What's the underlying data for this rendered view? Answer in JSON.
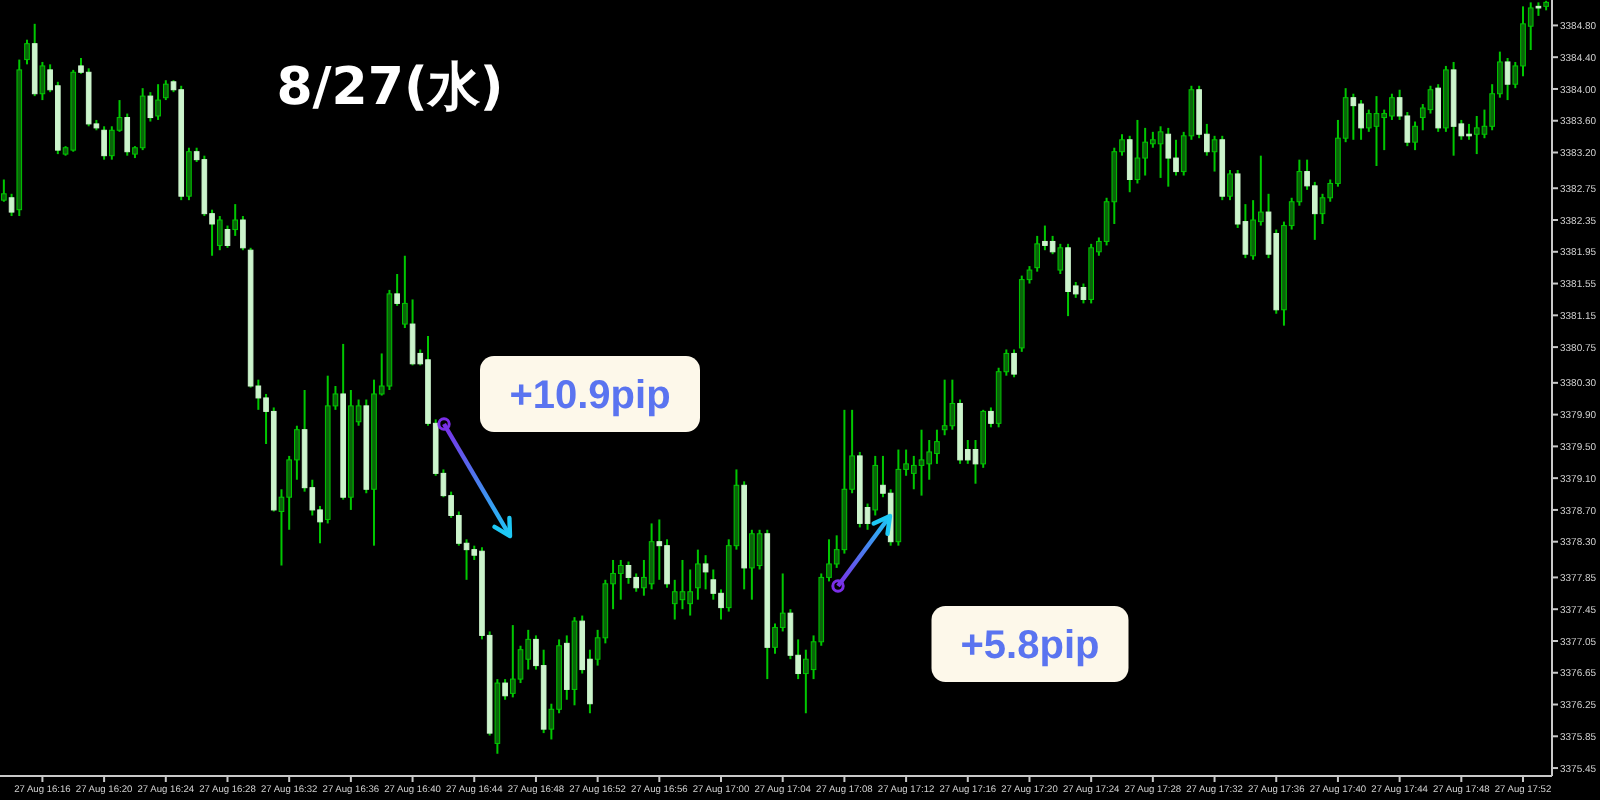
{
  "chart_data": {
    "type": "candlestick",
    "title": "8/27(水)",
    "ylim": [
      3375.35,
      3385.12
    ],
    "yticks": [
      {
        "value": 3384.8,
        "label": "3384.80"
      },
      {
        "value": 3384.4,
        "label": "3384.40"
      },
      {
        "value": 3384.0,
        "label": "3384.00"
      },
      {
        "value": 3383.6,
        "label": "3383.60"
      },
      {
        "value": 3383.2,
        "label": "3383.20"
      },
      {
        "value": 3382.75,
        "label": "3382.75"
      },
      {
        "value": 3382.35,
        "label": "3382.35"
      },
      {
        "value": 3381.95,
        "label": "3381.95"
      },
      {
        "value": 3381.55,
        "label": "3381.55"
      },
      {
        "value": 3381.15,
        "label": "3381.15"
      },
      {
        "value": 3380.75,
        "label": "3380.75"
      },
      {
        "value": 3380.3,
        "label": "3380.30"
      },
      {
        "value": 3379.9,
        "label": "3379.90"
      },
      {
        "value": 3379.5,
        "label": "3379.50"
      },
      {
        "value": 3379.1,
        "label": "3379.10"
      },
      {
        "value": 3378.7,
        "label": "3378.70"
      },
      {
        "value": 3378.3,
        "label": "3378.30"
      },
      {
        "value": 3377.85,
        "label": "3377.85"
      },
      {
        "value": 3377.45,
        "label": "3377.45"
      },
      {
        "value": 3377.05,
        "label": "3377.05"
      },
      {
        "value": 3376.65,
        "label": "3376.65"
      },
      {
        "value": 3376.25,
        "label": "3376.25"
      },
      {
        "value": 3375.85,
        "label": "3375.85"
      },
      {
        "value": 3375.45,
        "label": "3375.45"
      }
    ],
    "annotations": [
      "+10.9pip",
      "+5.8pip"
    ],
    "categories": [
      null,
      null,
      null,
      null,
      null,
      "27 Aug 16:16",
      null,
      null,
      null,
      null,
      null,
      null,
      null,
      "27 Aug 16:20",
      null,
      null,
      null,
      null,
      null,
      null,
      null,
      "27 Aug 16:24",
      null,
      null,
      null,
      null,
      null,
      null,
      null,
      "27 Aug 16:28",
      null,
      null,
      null,
      null,
      null,
      null,
      null,
      "27 Aug 16:32",
      null,
      null,
      null,
      null,
      null,
      null,
      null,
      "27 Aug 16:36",
      null,
      null,
      null,
      null,
      null,
      null,
      null,
      "27 Aug 16:40",
      null,
      null,
      null,
      null,
      null,
      null,
      null,
      "27 Aug 16:44",
      null,
      null,
      null,
      null,
      null,
      null,
      null,
      "27 Aug 16:48",
      null,
      null,
      null,
      null,
      null,
      null,
      null,
      "27 Aug 16:52",
      null,
      null,
      null,
      null,
      null,
      null,
      null,
      "27 Aug 16:56",
      null,
      null,
      null,
      null,
      null,
      null,
      null,
      "27 Aug 17:00",
      null,
      null,
      null,
      null,
      null,
      null,
      null,
      "27 Aug 17:04",
      null,
      null,
      null,
      null,
      null,
      null,
      null,
      "27 Aug 17:08",
      null,
      null,
      null,
      null,
      null,
      null,
      null,
      "27 Aug 17:12",
      null,
      null,
      null,
      null,
      null,
      null,
      null,
      "27 Aug 17:16",
      null,
      null,
      null,
      null,
      null,
      null,
      null,
      "27 Aug 17:20",
      null,
      null,
      null,
      null,
      null,
      null,
      null,
      "27 Aug 17:24",
      null,
      null,
      null,
      null,
      null,
      null,
      null,
      "27 Aug 17:28",
      null,
      null,
      null,
      null,
      null,
      null,
      null,
      "27 Aug 17:32",
      null,
      null,
      null,
      null,
      null,
      null,
      null,
      "27 Aug 17:36",
      null,
      null,
      null,
      null,
      null,
      null,
      null,
      "27 Aug 17:40",
      null,
      null,
      null,
      null,
      null,
      null,
      null,
      "27 Aug 17:44",
      null,
      null,
      null,
      null,
      null,
      null,
      null,
      "27 Aug 17:48",
      null,
      null,
      null,
      null,
      null,
      null,
      null,
      "27 Aug 17:52",
      null,
      null,
      null
    ],
    "ohlc": [
      [
        3382.6,
        3382.86,
        3382.58,
        3382.68
      ],
      [
        3382.63,
        3382.68,
        3382.4,
        3382.45
      ],
      [
        3382.48,
        3384.37,
        3382.4,
        3384.24
      ],
      [
        3384.37,
        3384.62,
        3384.31,
        3384.57
      ],
      [
        3384.57,
        3384.82,
        3383.91,
        3383.94
      ],
      [
        3383.94,
        3384.34,
        3383.86,
        3384.29
      ],
      [
        3384.24,
        3384.31,
        3383.96,
        3383.99
      ],
      [
        3384.04,
        3384.09,
        3383.18,
        3383.23
      ],
      [
        3383.18,
        3383.28,
        3383.16,
        3383.26
      ],
      [
        3383.23,
        3384.24,
        3383.21,
        3384.21
      ],
      [
        3384.29,
        3384.39,
        3384.19,
        3384.21
      ],
      [
        3384.21,
        3384.26,
        3383.53,
        3383.56
      ],
      [
        3383.56,
        3383.61,
        3383.48,
        3383.51
      ],
      [
        3383.48,
        3383.53,
        3383.11,
        3383.16
      ],
      [
        3383.16,
        3383.53,
        3383.11,
        3383.48
      ],
      [
        3383.48,
        3383.86,
        3383.46,
        3383.64
      ],
      [
        3383.64,
        3383.69,
        3383.16,
        3383.21
      ],
      [
        3383.18,
        3383.28,
        3383.13,
        3383.26
      ],
      [
        3383.26,
        3384.01,
        3383.23,
        3383.91
      ],
      [
        3383.91,
        3383.96,
        3383.59,
        3383.64
      ],
      [
        3383.66,
        3384.06,
        3383.61,
        3383.86
      ],
      [
        3383.89,
        3384.11,
        3383.86,
        3384.06
      ],
      [
        3384.09,
        3384.11,
        3383.96,
        3383.99
      ],
      [
        3383.99,
        3384.04,
        3382.6,
        3382.65
      ],
      [
        3382.65,
        3383.26,
        3382.6,
        3383.21
      ],
      [
        3383.21,
        3383.26,
        3383.08,
        3383.11
      ],
      [
        3383.11,
        3383.16,
        3382.4,
        3382.43
      ],
      [
        3382.43,
        3382.48,
        3381.9,
        3382.3
      ],
      [
        3382.03,
        3382.4,
        3381.97,
        3382.35
      ],
      [
        3382.23,
        3382.28,
        3382.0,
        3382.03
      ],
      [
        3382.23,
        3382.55,
        3382.15,
        3382.35
      ],
      [
        3382.35,
        3382.4,
        3381.97,
        3382.0
      ],
      [
        3381.97,
        3382.0,
        3380.24,
        3380.26
      ],
      [
        3380.26,
        3380.34,
        3379.96,
        3380.11
      ],
      [
        3380.11,
        3380.16,
        3379.53,
        3379.94
      ],
      [
        3379.94,
        3379.99,
        3378.68,
        3378.7
      ],
      [
        3378.68,
        3378.96,
        3378.0,
        3378.86
      ],
      [
        3378.86,
        3379.38,
        3378.45,
        3379.33
      ],
      [
        3379.33,
        3379.76,
        3379.08,
        3379.71
      ],
      [
        3379.71,
        3380.21,
        3378.93,
        3378.98
      ],
      [
        3378.98,
        3379.08,
        3378.63,
        3378.7
      ],
      [
        3378.7,
        3378.75,
        3378.28,
        3378.55
      ],
      [
        3378.58,
        3380.39,
        3378.53,
        3380.01
      ],
      [
        3380.01,
        3380.26,
        3379.96,
        3380.16
      ],
      [
        3380.16,
        3380.79,
        3378.83,
        3378.86
      ],
      [
        3378.86,
        3380.21,
        3378.7,
        3380.01
      ],
      [
        3379.81,
        3380.09,
        3379.76,
        3380.01
      ],
      [
        3380.01,
        3380.09,
        3378.91,
        3378.96
      ],
      [
        3378.96,
        3380.34,
        3378.25,
        3380.16
      ],
      [
        3380.16,
        3380.67,
        3380.14,
        3380.26
      ],
      [
        3380.26,
        3381.47,
        3380.21,
        3381.42
      ],
      [
        3381.42,
        3381.67,
        3381.27,
        3381.3
      ],
      [
        3381.04,
        3381.9,
        3380.99,
        3381.3
      ],
      [
        3381.04,
        3381.35,
        3380.52,
        3380.54
      ],
      [
        3380.67,
        3380.72,
        3380.52,
        3380.54
      ],
      [
        3380.59,
        3380.89,
        3379.76,
        3379.79
      ],
      [
        3379.79,
        3379.84,
        3379.13,
        3379.16
      ],
      [
        3379.16,
        3379.21,
        3378.86,
        3378.88
      ],
      [
        3378.88,
        3378.93,
        3378.6,
        3378.63
      ],
      [
        3378.63,
        3378.68,
        3378.25,
        3378.28
      ],
      [
        3378.28,
        3378.33,
        3377.82,
        3378.2
      ],
      [
        3378.2,
        3378.25,
        3378.07,
        3378.13
      ],
      [
        3378.18,
        3378.23,
        3377.07,
        3377.12
      ],
      [
        3377.12,
        3377.17,
        3375.86,
        3375.89
      ],
      [
        3375.76,
        3376.57,
        3375.63,
        3376.52
      ],
      [
        3376.52,
        3376.57,
        3376.31,
        3376.36
      ],
      [
        3376.39,
        3377.25,
        3376.34,
        3376.57
      ],
      [
        3376.57,
        3376.99,
        3376.52,
        3376.94
      ],
      [
        3376.82,
        3377.19,
        3376.69,
        3377.07
      ],
      [
        3377.07,
        3377.12,
        3376.69,
        3376.74
      ],
      [
        3376.74,
        3376.94,
        3375.89,
        3375.94
      ],
      [
        3375.94,
        3376.26,
        3375.81,
        3376.19
      ],
      [
        3376.19,
        3377.07,
        3376.14,
        3376.99
      ],
      [
        3377.02,
        3377.12,
        3376.31,
        3376.44
      ],
      [
        3376.44,
        3377.35,
        3376.24,
        3377.3
      ],
      [
        3377.3,
        3377.37,
        3376.64,
        3376.69
      ],
      [
        3376.82,
        3376.94,
        3376.14,
        3376.26
      ],
      [
        3376.82,
        3377.19,
        3376.74,
        3377.09
      ],
      [
        3377.09,
        3377.82,
        3377.02,
        3377.77
      ],
      [
        3377.77,
        3378.07,
        3377.45,
        3377.9
      ],
      [
        3377.9,
        3378.07,
        3377.57,
        3378.0
      ],
      [
        3378.0,
        3378.05,
        3377.77,
        3377.85
      ],
      [
        3377.85,
        3377.9,
        3377.67,
        3377.72
      ],
      [
        3377.72,
        3378.07,
        3377.62,
        3377.85
      ],
      [
        3377.77,
        3378.53,
        3377.7,
        3378.3
      ],
      [
        3378.3,
        3378.58,
        3377.82,
        3378.25
      ],
      [
        3378.25,
        3378.33,
        3377.72,
        3377.77
      ],
      [
        3377.52,
        3377.82,
        3377.32,
        3377.67
      ],
      [
        3377.57,
        3378.07,
        3377.45,
        3377.67
      ],
      [
        3377.52,
        3377.95,
        3377.37,
        3377.67
      ],
      [
        3377.72,
        3378.2,
        3377.57,
        3378.02
      ],
      [
        3378.02,
        3378.13,
        3377.7,
        3377.92
      ],
      [
        3377.82,
        3377.95,
        3377.57,
        3377.65
      ],
      [
        3377.65,
        3377.7,
        3377.32,
        3377.47
      ],
      [
        3377.47,
        3378.33,
        3377.42,
        3378.25
      ],
      [
        3378.25,
        3379.21,
        3378.2,
        3379.01
      ],
      [
        3379.01,
        3379.06,
        3377.7,
        3377.97
      ],
      [
        3377.97,
        3378.45,
        3377.57,
        3378.4
      ],
      [
        3378.0,
        3378.45,
        3377.95,
        3378.4
      ],
      [
        3378.4,
        3378.45,
        3376.57,
        3376.97
      ],
      [
        3376.97,
        3377.27,
        3376.89,
        3377.22
      ],
      [
        3377.22,
        3377.9,
        3377.17,
        3377.4
      ],
      [
        3377.4,
        3377.45,
        3376.82,
        3376.87
      ],
      [
        3376.87,
        3377.07,
        3376.57,
        3376.64
      ],
      [
        3376.64,
        3376.94,
        3376.14,
        3376.82
      ],
      [
        3376.69,
        3377.12,
        3376.57,
        3377.04
      ],
      [
        3377.04,
        3377.9,
        3376.99,
        3377.85
      ],
      [
        3377.85,
        3378.33,
        3377.8,
        3378.02
      ],
      [
        3378.02,
        3378.38,
        3377.97,
        3378.2
      ],
      [
        3378.2,
        3379.96,
        3378.15,
        3378.96
      ],
      [
        3378.96,
        3379.96,
        3378.91,
        3379.38
      ],
      [
        3379.38,
        3379.43,
        3378.48,
        3378.53
      ],
      [
        3378.73,
        3378.78,
        3378.45,
        3378.53
      ],
      [
        3378.7,
        3379.38,
        3378.63,
        3379.26
      ],
      [
        3379.01,
        3379.38,
        3378.86,
        3378.91
      ],
      [
        3378.91,
        3378.96,
        3378.25,
        3378.3
      ],
      [
        3378.3,
        3379.46,
        3378.25,
        3379.21
      ],
      [
        3379.21,
        3379.46,
        3379.13,
        3379.28
      ],
      [
        3379.16,
        3379.38,
        3378.96,
        3379.26
      ],
      [
        3379.26,
        3379.71,
        3378.88,
        3379.33
      ],
      [
        3379.28,
        3379.58,
        3379.08,
        3379.43
      ],
      [
        3379.41,
        3379.71,
        3379.28,
        3379.56
      ],
      [
        3379.71,
        3380.34,
        3379.64,
        3379.76
      ],
      [
        3379.76,
        3380.34,
        3379.71,
        3380.04
      ],
      [
        3380.04,
        3380.09,
        3379.28,
        3379.33
      ],
      [
        3379.46,
        3379.58,
        3379.28,
        3379.33
      ],
      [
        3379.46,
        3379.58,
        3379.03,
        3379.28
      ],
      [
        3379.28,
        3379.96,
        3379.23,
        3379.94
      ],
      [
        3379.94,
        3379.99,
        3379.74,
        3379.79
      ],
      [
        3379.79,
        3380.49,
        3379.74,
        3380.44
      ],
      [
        3380.44,
        3380.72,
        3380.39,
        3380.67
      ],
      [
        3380.67,
        3380.72,
        3380.37,
        3380.41
      ],
      [
        3380.74,
        3381.65,
        3380.69,
        3381.6
      ],
      [
        3381.6,
        3381.77,
        3381.55,
        3381.72
      ],
      [
        3381.75,
        3382.15,
        3381.7,
        3382.05
      ],
      [
        3382.08,
        3382.28,
        3381.97,
        3382.03
      ],
      [
        3382.08,
        3382.15,
        3381.92,
        3381.95
      ],
      [
        3381.72,
        3382.05,
        3381.67,
        3382.0
      ],
      [
        3382.0,
        3382.05,
        3381.14,
        3381.45
      ],
      [
        3381.52,
        3381.57,
        3381.37,
        3381.42
      ],
      [
        3381.5,
        3381.55,
        3381.3,
        3381.35
      ],
      [
        3381.35,
        3382.05,
        3381.3,
        3382.0
      ],
      [
        3381.95,
        3382.13,
        3381.9,
        3382.08
      ],
      [
        3382.08,
        3382.63,
        3382.03,
        3382.58
      ],
      [
        3382.58,
        3383.26,
        3382.3,
        3383.21
      ],
      [
        3383.21,
        3383.43,
        3383.16,
        3383.36
      ],
      [
        3383.36,
        3383.41,
        3382.7,
        3382.86
      ],
      [
        3382.86,
        3383.61,
        3382.81,
        3383.13
      ],
      [
        3383.13,
        3383.51,
        3382.91,
        3383.33
      ],
      [
        3383.31,
        3383.46,
        3383.26,
        3383.36
      ],
      [
        3383.31,
        3383.53,
        3382.88,
        3383.46
      ],
      [
        3383.43,
        3383.51,
        3382.77,
        3383.13
      ],
      [
        3383.13,
        3383.36,
        3382.91,
        3382.96
      ],
      [
        3382.96,
        3383.46,
        3382.91,
        3383.41
      ],
      [
        3383.41,
        3384.04,
        3383.36,
        3383.99
      ],
      [
        3383.99,
        3384.04,
        3383.38,
        3383.43
      ],
      [
        3383.43,
        3383.56,
        3383.16,
        3383.21
      ],
      [
        3383.21,
        3383.41,
        3382.96,
        3383.36
      ],
      [
        3383.36,
        3383.41,
        3382.6,
        3382.65
      ],
      [
        3382.65,
        3382.98,
        3382.6,
        3382.93
      ],
      [
        3382.93,
        3382.98,
        3382.25,
        3382.3
      ],
      [
        3382.33,
        3382.55,
        3381.87,
        3381.92
      ],
      [
        3381.9,
        3382.6,
        3381.85,
        3382.35
      ],
      [
        3382.33,
        3383.16,
        3382.28,
        3382.45
      ],
      [
        3382.45,
        3382.68,
        3381.87,
        3381.92
      ],
      [
        3382.18,
        3382.23,
        3381.17,
        3381.22
      ],
      [
        3381.22,
        3382.33,
        3381.02,
        3382.28
      ],
      [
        3382.28,
        3382.63,
        3382.23,
        3382.58
      ],
      [
        3382.58,
        3383.11,
        3382.53,
        3382.96
      ],
      [
        3382.96,
        3383.11,
        3382.73,
        3382.78
      ],
      [
        3382.78,
        3382.83,
        3382.1,
        3382.43
      ],
      [
        3382.43,
        3382.68,
        3382.3,
        3382.63
      ],
      [
        3382.63,
        3382.86,
        3382.58,
        3382.81
      ],
      [
        3382.81,
        3383.61,
        3382.77,
        3383.38
      ],
      [
        3383.38,
        3384.01,
        3383.33,
        3383.89
      ],
      [
        3383.89,
        3383.94,
        3383.36,
        3383.79
      ],
      [
        3383.81,
        3383.86,
        3383.36,
        3383.51
      ],
      [
        3383.51,
        3383.74,
        3383.46,
        3383.69
      ],
      [
        3383.53,
        3383.91,
        3383.03,
        3383.69
      ],
      [
        3383.64,
        3383.74,
        3383.23,
        3383.69
      ],
      [
        3383.66,
        3383.94,
        3383.61,
        3383.89
      ],
      [
        3383.89,
        3383.99,
        3383.61,
        3383.66
      ],
      [
        3383.66,
        3383.71,
        3383.28,
        3383.33
      ],
      [
        3383.33,
        3383.59,
        3383.23,
        3383.53
      ],
      [
        3383.64,
        3383.81,
        3383.48,
        3383.76
      ],
      [
        3383.74,
        3384.04,
        3383.69,
        3383.99
      ],
      [
        3384.01,
        3384.06,
        3383.46,
        3383.51
      ],
      [
        3383.51,
        3384.29,
        3383.46,
        3384.24
      ],
      [
        3384.24,
        3384.34,
        3383.16,
        3383.53
      ],
      [
        3383.56,
        3383.61,
        3383.36,
        3383.41
      ],
      [
        3383.43,
        3383.56,
        3383.36,
        3383.41
      ],
      [
        3383.43,
        3383.66,
        3383.18,
        3383.51
      ],
      [
        3383.43,
        3383.74,
        3383.38,
        3383.53
      ],
      [
        3383.53,
        3384.06,
        3383.48,
        3383.94
      ],
      [
        3383.94,
        3384.47,
        3383.89,
        3384.34
      ],
      [
        3384.34,
        3384.39,
        3383.86,
        3384.06
      ],
      [
        3384.06,
        3384.34,
        3384.01,
        3384.29
      ],
      [
        3384.29,
        3385.04,
        3384.16,
        3384.82
      ],
      [
        3384.79,
        3385.09,
        3384.49,
        3385.02
      ],
      [
        3385.04,
        3385.09,
        3384.92,
        3385.02
      ],
      [
        3385.04,
        3385.11,
        3384.99,
        3385.09
      ]
    ]
  }
}
